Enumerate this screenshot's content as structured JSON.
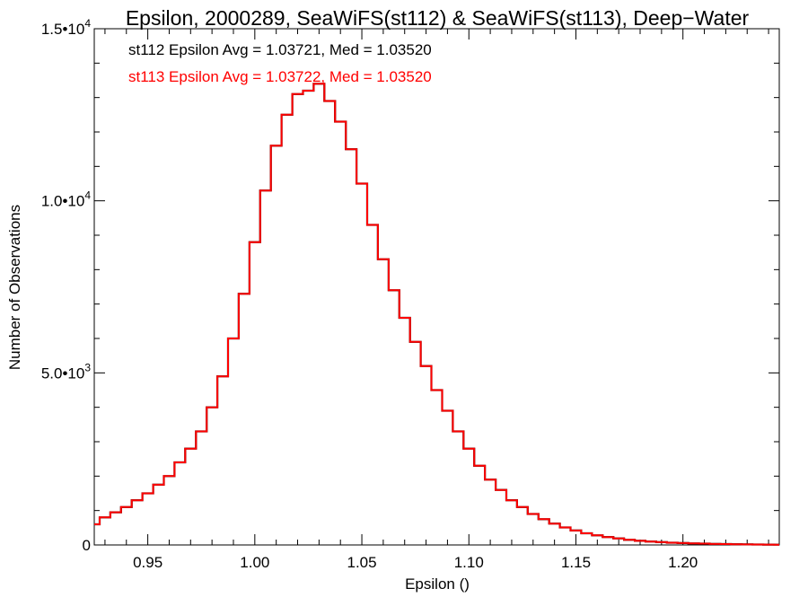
{
  "chart_data": {
    "type": "line",
    "title": "Epsilon, 2000289, SeaWiFS(st112) & SeaWiFS(st113), Deep−Water",
    "xlabel": "Epsilon ()",
    "ylabel": "Number of Observations",
    "xlim": [
      0.925,
      1.245
    ],
    "ylim": [
      0,
      15000
    ],
    "x_ticks": [
      {
        "value": 0.95,
        "label": "0.95"
      },
      {
        "value": 1.0,
        "label": "1.00"
      },
      {
        "value": 1.05,
        "label": "1.05"
      },
      {
        "value": 1.1,
        "label": "1.10"
      },
      {
        "value": 1.15,
        "label": "1.15"
      },
      {
        "value": 1.2,
        "label": "1.20"
      }
    ],
    "x_minor_step": 0.01,
    "y_ticks": [
      {
        "value": 0,
        "base": "0",
        "exp": ""
      },
      {
        "value": 5000,
        "base": "5.0•10",
        "exp": "3"
      },
      {
        "value": 10000,
        "base": "1.0•10",
        "exp": "4"
      },
      {
        "value": 15000,
        "base": "1.5•10",
        "exp": "4"
      }
    ],
    "y_minor_step": 1000,
    "grid": false,
    "annotations": [
      {
        "text": "st112 Epsilon Avg = 1.03721, Med = 1.03520",
        "color": "#000000"
      },
      {
        "text": "st113 Epsilon Avg = 1.03722, Med = 1.03520",
        "color": "#ff0000"
      }
    ],
    "series": [
      {
        "color": "#000000",
        "style": "step",
        "x": [
          0.925,
          0.93,
          0.935,
          0.94,
          0.945,
          0.95,
          0.955,
          0.96,
          0.965,
          0.97,
          0.975,
          0.98,
          0.985,
          0.99,
          0.995,
          1.0,
          1.005,
          1.01,
          1.015,
          1.02,
          1.025,
          1.03,
          1.035,
          1.04,
          1.045,
          1.05,
          1.055,
          1.06,
          1.065,
          1.07,
          1.075,
          1.08,
          1.085,
          1.09,
          1.095,
          1.1,
          1.105,
          1.11,
          1.115,
          1.12,
          1.125,
          1.13,
          1.135,
          1.14,
          1.145,
          1.15,
          1.155,
          1.16,
          1.165,
          1.17,
          1.175,
          1.18,
          1.185,
          1.19,
          1.195,
          1.2,
          1.205,
          1.21,
          1.215,
          1.22,
          1.225,
          1.23,
          1.235,
          1.24,
          1.245
        ],
        "values": [
          600,
          800,
          950,
          1100,
          1300,
          1500,
          1750,
          2000,
          2400,
          2800,
          3300,
          4000,
          4900,
          6000,
          7300,
          8800,
          10300,
          11600,
          12500,
          13100,
          13200,
          13400,
          12900,
          12300,
          11500,
          10500,
          9300,
          8300,
          7400,
          6600,
          5900,
          5200,
          4500,
          3900,
          3300,
          2800,
          2300,
          1900,
          1600,
          1300,
          1100,
          900,
          750,
          620,
          510,
          420,
          340,
          280,
          230,
          190,
          150,
          120,
          100,
          80,
          65,
          55,
          45,
          38,
          30,
          25,
          20,
          16,
          13,
          10,
          8
        ]
      },
      {
        "color": "#ff0000",
        "style": "step",
        "x": [
          0.925,
          0.93,
          0.935,
          0.94,
          0.945,
          0.95,
          0.955,
          0.96,
          0.965,
          0.97,
          0.975,
          0.98,
          0.985,
          0.99,
          0.995,
          1.0,
          1.005,
          1.01,
          1.015,
          1.02,
          1.025,
          1.03,
          1.035,
          1.04,
          1.045,
          1.05,
          1.055,
          1.06,
          1.065,
          1.07,
          1.075,
          1.08,
          1.085,
          1.09,
          1.095,
          1.1,
          1.105,
          1.11,
          1.115,
          1.12,
          1.125,
          1.13,
          1.135,
          1.14,
          1.145,
          1.15,
          1.155,
          1.16,
          1.165,
          1.17,
          1.175,
          1.18,
          1.185,
          1.19,
          1.195,
          1.2,
          1.205,
          1.21,
          1.215,
          1.22,
          1.225,
          1.23,
          1.235,
          1.24,
          1.245
        ],
        "values": [
          600,
          800,
          950,
          1100,
          1300,
          1500,
          1750,
          2000,
          2400,
          2800,
          3300,
          4000,
          4900,
          6000,
          7300,
          8800,
          10300,
          11600,
          12500,
          13100,
          13200,
          13400,
          12900,
          12300,
          11500,
          10500,
          9300,
          8300,
          7400,
          6600,
          5900,
          5200,
          4500,
          3900,
          3300,
          2800,
          2300,
          1900,
          1600,
          1300,
          1100,
          900,
          750,
          620,
          510,
          420,
          340,
          280,
          230,
          190,
          150,
          120,
          100,
          80,
          65,
          55,
          45,
          38,
          30,
          25,
          20,
          16,
          13,
          10,
          8
        ]
      }
    ]
  }
}
